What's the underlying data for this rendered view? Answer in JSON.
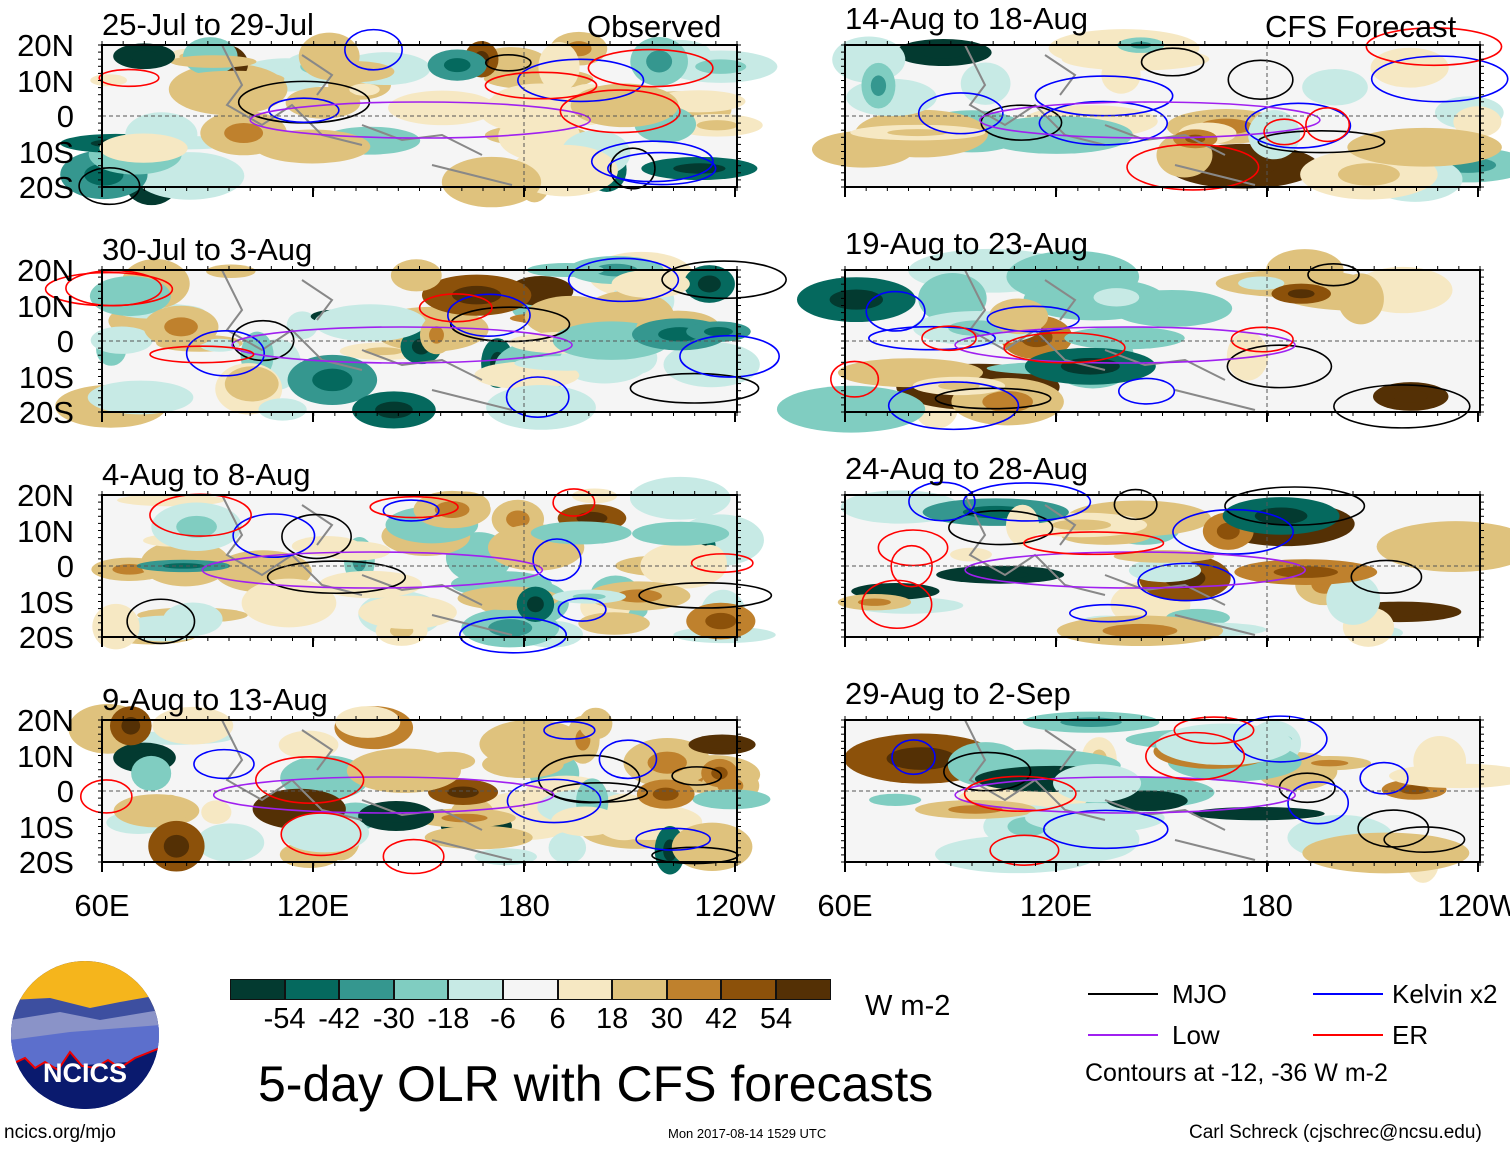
{
  "headers": {
    "left": "Observed",
    "right": "CFS Forecast"
  },
  "panels_left": [
    {
      "title": "25-Jul to 29-Jul"
    },
    {
      "title": "30-Jul to 3-Aug"
    },
    {
      "title": "4-Aug to 8-Aug"
    },
    {
      "title": "9-Aug to 13-Aug"
    }
  ],
  "panels_right": [
    {
      "title": "14-Aug to 18-Aug"
    },
    {
      "title": "19-Aug to 23-Aug"
    },
    {
      "title": "24-Aug to 28-Aug"
    },
    {
      "title": "29-Aug to 2-Sep"
    }
  ],
  "lat_labels": [
    "20N",
    "10N",
    "0",
    "10S",
    "20S"
  ],
  "lon_labels": [
    "60E",
    "120E",
    "180",
    "120W"
  ],
  "colorbar": {
    "colors": [
      "#033a30",
      "#05695e",
      "#35978f",
      "#80cdc1",
      "#c7eae5",
      "#f5f5f5",
      "#f6e8c3",
      "#dfc27d",
      "#bf812d",
      "#8c510a",
      "#543005"
    ],
    "labels": [
      "-54",
      "-42",
      "-30",
      "-18",
      "-6",
      "6",
      "18",
      "30",
      "42",
      "54"
    ],
    "units": "W m-2"
  },
  "title": "5-day OLR with CFS forecasts",
  "timestamp": "Mon 2017-08-14 1529 UTC",
  "legend": {
    "items": [
      {
        "label": "MJO",
        "color": "#000000"
      },
      {
        "label": "Kelvin x2",
        "color": "#0000ff"
      },
      {
        "label": "Low",
        "color": "#a020f0"
      },
      {
        "label": "ER",
        "color": "#ff0000"
      }
    ],
    "note": "Contours at -12, -36 W m-2"
  },
  "logo": {
    "text": "NCICS"
  },
  "footer": {
    "url": "ncics.org/mjo",
    "credit": "Carl Schreck (cjschrec@ncsu.edu)"
  }
}
